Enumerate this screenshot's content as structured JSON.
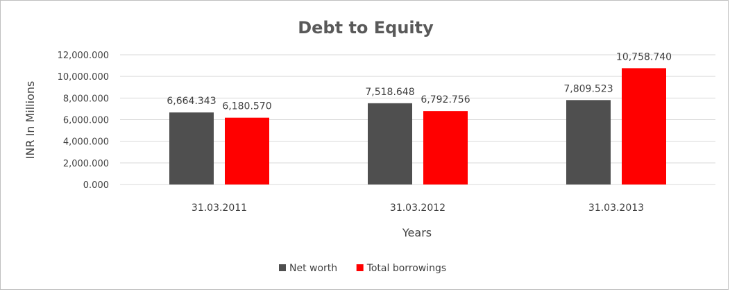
{
  "chart_data": {
    "type": "bar",
    "title": "Debt to Equity",
    "xlabel": "Years",
    "ylabel": "INR In Millions",
    "categories": [
      "31.03.2011",
      "31.03.2012",
      "31.03.2013"
    ],
    "series": [
      {
        "name": "Net worth",
        "color": "#4f4f4f",
        "values": [
          6664.343,
          7518.648,
          7809.523
        ],
        "labels": [
          "6,664.343",
          "7,518.648",
          "7,809.523"
        ]
      },
      {
        "name": "Total borrowings",
        "color": "#ff0000",
        "values": [
          6180.57,
          6792.756,
          10758.74
        ],
        "labels": [
          "6,180.570",
          "6,792.756",
          "10,758.740"
        ]
      }
    ],
    "ylim": [
      0,
      12000
    ],
    "yticks": [
      {
        "value": 0,
        "label": "0.000"
      },
      {
        "value": 2000,
        "label": "2,000.000"
      },
      {
        "value": 4000,
        "label": "4,000.000"
      },
      {
        "value": 6000,
        "label": "6,000.000"
      },
      {
        "value": 8000,
        "label": "8,000.000"
      },
      {
        "value": 10000,
        "label": "10,000.000"
      },
      {
        "value": 12000,
        "label": "12,000.000"
      }
    ],
    "grid": true,
    "gridColor": "#d9d9d9",
    "legend": "bottom"
  }
}
